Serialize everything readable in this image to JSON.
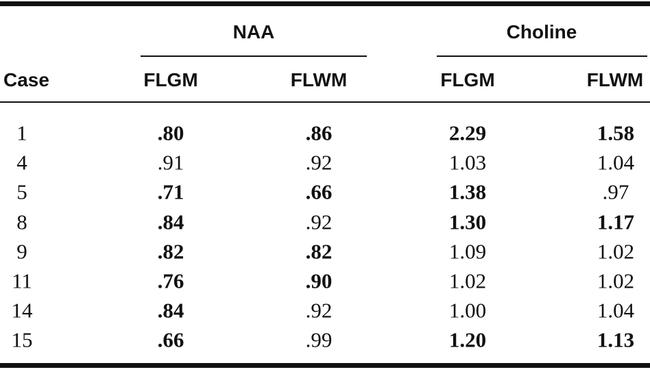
{
  "table": {
    "groups": [
      "NAA",
      "Choline"
    ],
    "columns": [
      "Case",
      "FLGM",
      "FLWM",
      "FLGM",
      "FLWM"
    ],
    "rows": [
      [
        "1",
        ".80",
        ".86",
        "2.29",
        "1.58"
      ],
      [
        "4",
        ".91",
        ".92",
        "1.03",
        "1.04"
      ],
      [
        "5",
        ".71",
        ".66",
        "1.38",
        ".97"
      ],
      [
        "8",
        ".84",
        ".92",
        "1.30",
        "1.17"
      ],
      [
        "9",
        ".82",
        ".82",
        "1.09",
        "1.02"
      ],
      [
        "11",
        ".76",
        ".90",
        "1.02",
        "1.02"
      ],
      [
        "14",
        ".84",
        ".92",
        "1.00",
        "1.04"
      ],
      [
        "15",
        ".66",
        ".99",
        "1.20",
        "1.13"
      ]
    ],
    "bold": [
      [
        false,
        true,
        true,
        true,
        true
      ],
      [
        false,
        false,
        false,
        false,
        false
      ],
      [
        false,
        true,
        true,
        true,
        false
      ],
      [
        false,
        true,
        false,
        true,
        true
      ],
      [
        false,
        true,
        true,
        false,
        false
      ],
      [
        false,
        true,
        true,
        false,
        false
      ],
      [
        false,
        true,
        false,
        false,
        false
      ],
      [
        false,
        true,
        false,
        true,
        true
      ]
    ]
  }
}
